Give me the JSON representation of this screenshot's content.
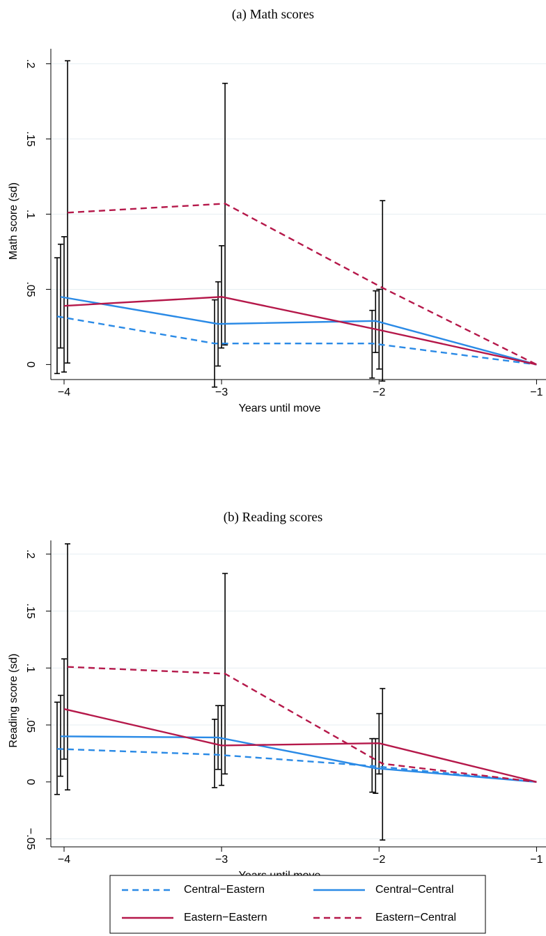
{
  "chart_data": [
    {
      "type": "line",
      "title": "(a) Math scores",
      "x_label": "Years until move",
      "y_label": "Math score (sd)",
      "x": [
        -4,
        -3,
        -2,
        -1
      ],
      "xlim": [
        -4.084,
        -0.94
      ],
      "xticks": [
        {
          "value": -4,
          "label": "−4"
        },
        {
          "value": -3,
          "label": "−3"
        },
        {
          "value": -2,
          "label": "−2"
        },
        {
          "value": -1,
          "label": "−1"
        }
      ],
      "ylim": [
        -0.01,
        0.21
      ],
      "yticks": [
        0,
        {
          "value": 0.05,
          "label": ".05"
        },
        {
          "value": 0.1,
          "label": ".1"
        },
        {
          "value": 0.15,
          "label": ".15"
        },
        {
          "value": 0.2,
          "label": ".2"
        }
      ],
      "grid": true,
      "series": [
        {
          "color": "#2a8ae6",
          "dashed": true,
          "values": [
            0.032,
            0.014,
            0.014,
            0
          ],
          "ci_low": [
            -0.006,
            -0.015,
            -0.009,
            null
          ],
          "ci_high": [
            0.071,
            0.043,
            0.036,
            null
          ]
        },
        {
          "color": "#2a8ae6",
          "dashed": false,
          "values": [
            0.045,
            0.027,
            0.029,
            0
          ],
          "ci_low": [
            0.011,
            -0.001,
            0.008,
            null
          ],
          "ci_high": [
            0.08,
            0.055,
            0.049,
            null
          ]
        },
        {
          "color": "#b5184a",
          "dashed": false,
          "values": [
            0.039,
            0.045,
            0.023,
            0
          ],
          "ci_low": [
            -0.005,
            0.011,
            -0.003,
            null
          ],
          "ci_high": [
            0.085,
            0.079,
            0.05,
            null
          ]
        },
        {
          "color": "#b5184a",
          "dashed": true,
          "values": [
            0.101,
            0.107,
            0.051,
            0
          ],
          "ci_low": [
            0.001,
            0.013,
            -0.011,
            null
          ],
          "ci_high": [
            0.202,
            0.187,
            0.109,
            null
          ]
        }
      ]
    },
    {
      "type": "line",
      "title": "(b) Reading scores",
      "x_label": "Years until move",
      "y_label": "Reading score (sd)",
      "x": [
        -4,
        -3,
        -2,
        -1
      ],
      "xlim": [
        -4.084,
        -0.94
      ],
      "xticks": [
        {
          "value": -4,
          "label": "−4"
        },
        {
          "value": -3,
          "label": "−3"
        },
        {
          "value": -2,
          "label": "−2"
        },
        {
          "value": -1,
          "label": "−1"
        }
      ],
      "ylim": [
        -0.057,
        0.212
      ],
      "yticks": [
        {
          "value": -0.05,
          "label": "−.05"
        },
        0,
        {
          "value": 0.05,
          "label": ".05"
        },
        {
          "value": 0.1,
          "label": ".1"
        },
        {
          "value": 0.15,
          "label": ".15"
        },
        {
          "value": 0.2,
          "label": ".2"
        }
      ],
      "grid": true,
      "legend": "bottom",
      "series": [
        {
          "name": "Central−Eastern",
          "color": "#2a8ae6",
          "dashed": true,
          "values": [
            0.029,
            0.024,
            0.014,
            0
          ],
          "ci_low": [
            -0.011,
            -0.005,
            -0.009,
            null
          ],
          "ci_high": [
            0.07,
            0.055,
            0.038,
            null
          ]
        },
        {
          "name": "Central−Central",
          "color": "#2a8ae6",
          "dashed": false,
          "values": [
            0.04,
            0.039,
            0.012,
            0
          ],
          "ci_low": [
            0.005,
            0.011,
            -0.01,
            null
          ],
          "ci_high": [
            0.076,
            0.067,
            0.038,
            null
          ]
        },
        {
          "name": "Eastern−Eastern",
          "color": "#b5184a",
          "dashed": false,
          "values": [
            0.064,
            0.032,
            0.034,
            0
          ],
          "ci_low": [
            0.02,
            -0.003,
            0.007,
            null
          ],
          "ci_high": [
            0.108,
            0.067,
            0.06,
            null
          ]
        },
        {
          "name": "Eastern−Central",
          "color": "#b5184a",
          "dashed": true,
          "values": [
            0.101,
            0.095,
            0.016,
            0
          ],
          "ci_low": [
            -0.007,
            0.007,
            -0.051,
            null
          ],
          "ci_high": [
            0.209,
            0.183,
            0.082,
            null
          ]
        }
      ]
    }
  ]
}
